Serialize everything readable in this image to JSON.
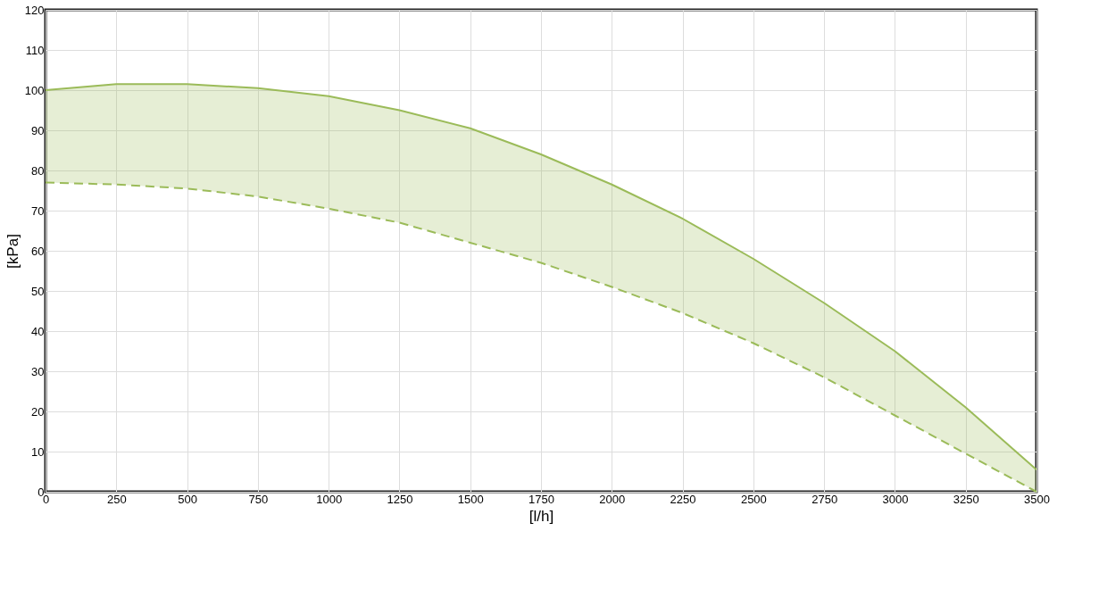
{
  "chart_data": {
    "type": "line",
    "xlabel": "[l/h]",
    "ylabel": "[kPa]",
    "x": [
      0,
      250,
      500,
      750,
      1000,
      1250,
      1500,
      1750,
      2000,
      2250,
      2500,
      2750,
      3000,
      3250,
      3500
    ],
    "series": [
      {
        "color": "#9bbb59",
        "line_style": "solid",
        "values": [
          100,
          101.5,
          101.5,
          100.5,
          98.5,
          95,
          90.5,
          84,
          76.5,
          68,
          58,
          47,
          35,
          21,
          5.5
        ],
        "lower": [
          77,
          76.5,
          75.5,
          73.5,
          70.5,
          67,
          62,
          57,
          51,
          44.5,
          37,
          28.5,
          19,
          9.5,
          0
        ],
        "upper": [
          100,
          101.5,
          101.5,
          100.5,
          98.5,
          95,
          90.5,
          84,
          76.5,
          68,
          58,
          47,
          35,
          21,
          5.5
        ]
      },
      {
        "color": "#9bbb59",
        "line_style": "dashed",
        "values": [
          77,
          76.5,
          75.5,
          73.5,
          70.5,
          67,
          62,
          57,
          51,
          44.5,
          37,
          28.5,
          19,
          9.5,
          0
        ]
      }
    ],
    "xlim": [
      0,
      3500
    ],
    "xticks": [
      0,
      250,
      500,
      750,
      1000,
      1250,
      1500,
      1750,
      2000,
      2250,
      2500,
      2750,
      3000,
      3250,
      3500
    ],
    "ylim": [
      0,
      120
    ],
    "yticks": [
      0,
      10,
      20,
      30,
      40,
      50,
      60,
      70,
      80,
      90,
      100,
      110,
      120
    ],
    "grid": true,
    "marker": "none"
  }
}
